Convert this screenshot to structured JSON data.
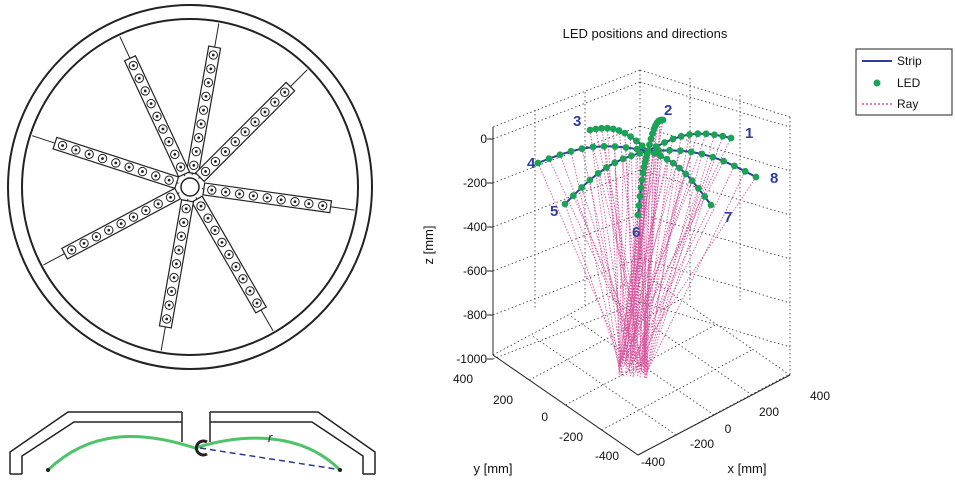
{
  "plot": {
    "title": "LED positions and directions",
    "zlabel": "z [mm]",
    "ylabel": "y [mm]",
    "xlabel": "x [mm]",
    "z_ticks": [
      "0",
      "-200",
      "-400",
      "-600",
      "-800",
      "-1000"
    ],
    "y_ticks": [
      "400",
      "200",
      "0",
      "-200",
      "-400"
    ],
    "x_ticks": [
      "-400",
      "-200",
      "0",
      "200",
      "400"
    ]
  },
  "legend": {
    "items": [
      "Strip",
      "LED",
      "Ray"
    ]
  },
  "strip_labels": [
    "1",
    "2",
    "3",
    "4",
    "5",
    "6",
    "7",
    "8"
  ],
  "colors": {
    "strip": "#2f3d9e",
    "led": "#1aa356",
    "ray": "#d6559e",
    "green_curve": "#4fc36a",
    "dashed": "#2b3a8c",
    "frame": "#222222"
  },
  "icons": {
    "wheel": "wheel-with-led-strips-icon",
    "side": "dome-side-section-icon"
  }
}
